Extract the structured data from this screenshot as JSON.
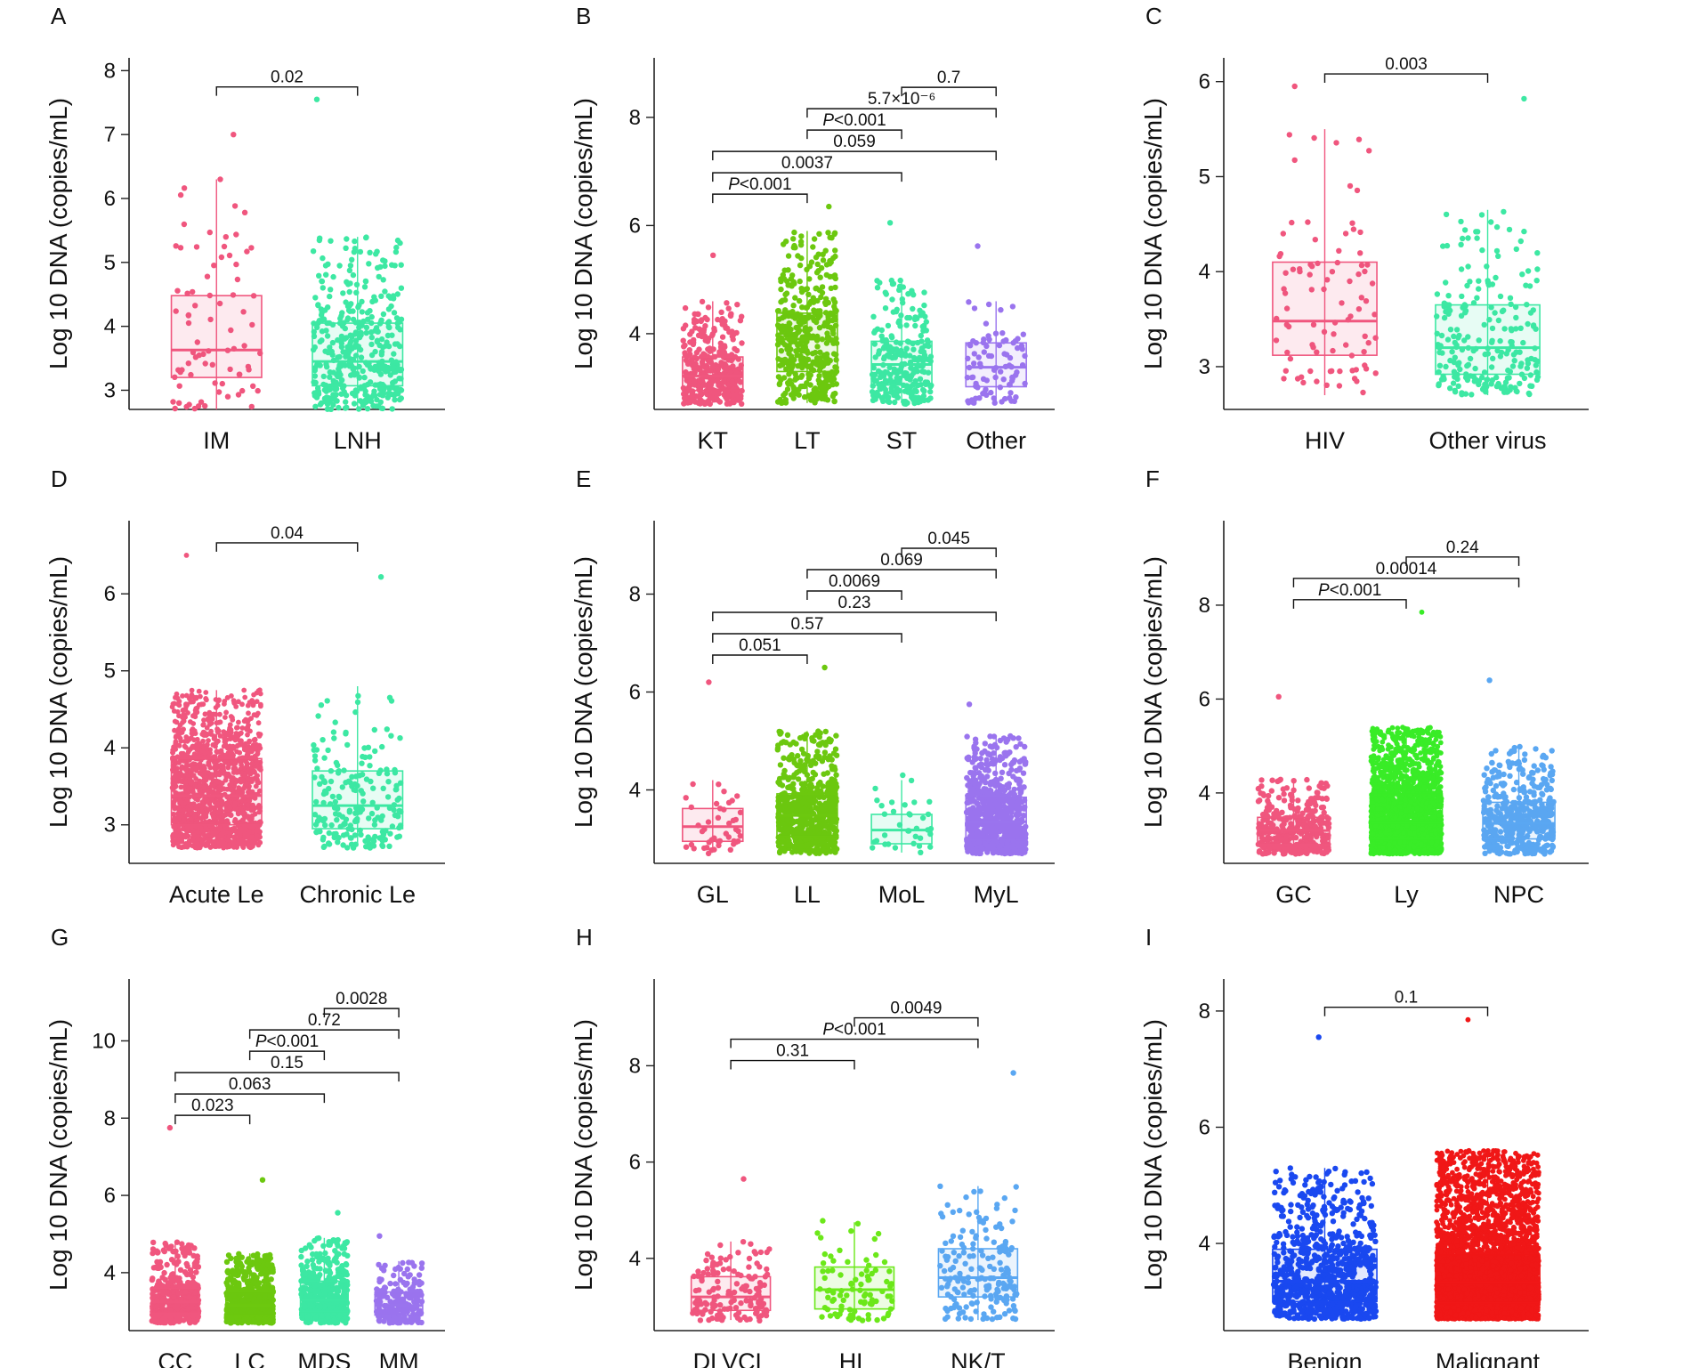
{
  "figure": {
    "y_axis_label": "Log 10 DNA (copies/mL)"
  },
  "chart_data": [
    {
      "type": "box",
      "panel": "A",
      "ylim": [
        2.7,
        8.2
      ],
      "yticks": [
        3,
        4,
        5,
        6,
        7,
        8
      ],
      "categories": [
        "IM",
        "LNH"
      ],
      "colors": [
        "#f0567e",
        "#3de8a3"
      ],
      "boxes": [
        {
          "q1": 3.2,
          "median": 3.63,
          "q3": 4.48,
          "lower": 2.7,
          "upper": 6.3,
          "n": 80,
          "max": 7.0
        },
        {
          "q1": 3.07,
          "median": 3.45,
          "q3": 4.05,
          "lower": 2.7,
          "upper": 5.4,
          "n": 420,
          "max": 7.55
        }
      ],
      "comparisons": [
        {
          "from": 0,
          "to": 1,
          "level": 0,
          "label": "0.02",
          "p": 0.02
        }
      ]
    },
    {
      "type": "box",
      "panel": "B",
      "ylim": [
        2.6,
        9.1
      ],
      "yticks": [
        4,
        6,
        8
      ],
      "categories": [
        "KT",
        "LT",
        "ST",
        "Other"
      ],
      "colors": [
        "#f0567e",
        "#6cc80f",
        "#3de8a3",
        "#9a74ee"
      ],
      "boxes": [
        {
          "q1": 2.95,
          "median": 3.22,
          "q3": 3.57,
          "lower": 2.72,
          "upper": 4.6,
          "n": 380,
          "max": 5.45
        },
        {
          "q1": 3.3,
          "median": 3.9,
          "q3": 4.38,
          "lower": 2.72,
          "upper": 5.9,
          "n": 420,
          "max": 6.35
        },
        {
          "q1": 3.05,
          "median": 3.43,
          "q3": 3.86,
          "lower": 2.72,
          "upper": 5.0,
          "n": 280,
          "max": 6.05
        },
        {
          "q1": 3.02,
          "median": 3.38,
          "q3": 3.83,
          "lower": 2.72,
          "upper": 4.6,
          "n": 90,
          "max": 5.62
        }
      ],
      "comparisons": [
        {
          "from": 0,
          "to": 1,
          "level": 0,
          "label": "<0.001",
          "p_prefix": "P"
        },
        {
          "from": 0,
          "to": 2,
          "level": 1,
          "label": "0.0037",
          "p": 0.0037
        },
        {
          "from": 0,
          "to": 3,
          "level": 2,
          "label": "0.059",
          "p": 0.059
        },
        {
          "from": 1,
          "to": 2,
          "level": 3,
          "label": "<0.001",
          "p_prefix": "P"
        },
        {
          "from": 1,
          "to": 3,
          "level": 4,
          "label": "5.7×10⁻⁶",
          "p": 5.7e-06
        },
        {
          "from": 2,
          "to": 3,
          "level": 5,
          "label": "0.7",
          "p": 0.7
        }
      ]
    },
    {
      "type": "box",
      "panel": "C",
      "ylim": [
        2.55,
        6.25
      ],
      "yticks": [
        3,
        4,
        5,
        6
      ],
      "categories": [
        "HIV",
        "Other virus"
      ],
      "colors": [
        "#f0567e",
        "#3de8a3"
      ],
      "boxes": [
        {
          "q1": 3.12,
          "median": 3.48,
          "q3": 4.1,
          "lower": 2.7,
          "upper": 5.5,
          "n": 90,
          "max": 5.95
        },
        {
          "q1": 2.92,
          "median": 3.2,
          "q3": 3.65,
          "lower": 2.7,
          "upper": 4.65,
          "n": 230,
          "max": 5.82
        }
      ],
      "comparisons": [
        {
          "from": 0,
          "to": 1,
          "level": 0,
          "label": "0.003",
          "p": 0.003
        }
      ]
    },
    {
      "type": "box",
      "panel": "D",
      "ylim": [
        2.5,
        6.95
      ],
      "yticks": [
        3,
        4,
        5,
        6
      ],
      "categories": [
        "Acute Le",
        "Chronic Le"
      ],
      "colors": [
        "#f0567e",
        "#3de8a3"
      ],
      "boxes": [
        {
          "q1": 3.0,
          "median": 3.38,
          "q3": 3.86,
          "lower": 2.72,
          "upper": 4.75,
          "n": 1500,
          "max": 6.5
        },
        {
          "q1": 2.95,
          "median": 3.25,
          "q3": 3.7,
          "lower": 2.72,
          "upper": 4.8,
          "n": 200,
          "max": 6.22
        }
      ],
      "comparisons": [
        {
          "from": 0,
          "to": 1,
          "level": 0,
          "label": "0.04",
          "p": 0.04
        }
      ]
    },
    {
      "type": "box",
      "panel": "E",
      "ylim": [
        2.5,
        9.5
      ],
      "yticks": [
        4,
        6,
        8
      ],
      "categories": [
        "GL",
        "LL",
        "MoL",
        "MyL"
      ],
      "colors": [
        "#f0567e",
        "#6cc80f",
        "#3de8a3",
        "#9a74ee"
      ],
      "boxes": [
        {
          "q1": 2.95,
          "median": 3.25,
          "q3": 3.62,
          "lower": 2.72,
          "upper": 4.2,
          "n": 45,
          "max": 6.2
        },
        {
          "q1": 3.05,
          "median": 3.48,
          "q3": 3.92,
          "lower": 2.72,
          "upper": 5.2,
          "n": 650,
          "max": 6.5
        },
        {
          "q1": 2.9,
          "median": 3.18,
          "q3": 3.5,
          "lower": 2.72,
          "upper": 4.2,
          "n": 35,
          "max": 4.3
        },
        {
          "q1": 2.98,
          "median": 3.35,
          "q3": 3.85,
          "lower": 2.72,
          "upper": 5.1,
          "n": 800,
          "max": 5.75
        }
      ],
      "comparisons": [
        {
          "from": 0,
          "to": 1,
          "level": 0,
          "label": "0.051",
          "p": 0.051
        },
        {
          "from": 0,
          "to": 2,
          "level": 1,
          "label": "0.57",
          "p": 0.57
        },
        {
          "from": 0,
          "to": 3,
          "level": 2,
          "label": "0.23",
          "p": 0.23
        },
        {
          "from": 1,
          "to": 2,
          "level": 3,
          "label": "0.0069",
          "p": 0.0069
        },
        {
          "from": 1,
          "to": 3,
          "level": 4,
          "label": "0.069",
          "p": 0.069
        },
        {
          "from": 2,
          "to": 3,
          "level": 5,
          "label": "0.045",
          "p": 0.045
        }
      ]
    },
    {
      "type": "box",
      "panel": "F",
      "ylim": [
        2.5,
        9.8
      ],
      "yticks": [
        4,
        6,
        8
      ],
      "categories": [
        "GC",
        "Ly",
        "NPC"
      ],
      "colors": [
        "#f0567e",
        "#39ec27",
        "#5aa7f2"
      ],
      "boxes": [
        {
          "q1": 2.9,
          "median": 3.2,
          "q3": 3.48,
          "lower": 2.72,
          "upper": 4.3,
          "n": 380,
          "max": 6.05
        },
        {
          "q1": 3.02,
          "median": 3.38,
          "q3": 3.98,
          "lower": 2.72,
          "upper": 5.4,
          "n": 2200,
          "max": 7.85
        },
        {
          "q1": 3.02,
          "median": 3.35,
          "q3": 3.8,
          "lower": 2.72,
          "upper": 5.0,
          "n": 450,
          "max": 6.4
        }
      ],
      "comparisons": [
        {
          "from": 0,
          "to": 1,
          "level": 0,
          "label": "<0.001",
          "p_prefix": "P"
        },
        {
          "from": 0,
          "to": 2,
          "level": 1,
          "label": "0.00014",
          "p": 0.00014
        },
        {
          "from": 1,
          "to": 2,
          "level": 2,
          "label": "0.24",
          "p": 0.24
        }
      ]
    },
    {
      "type": "box",
      "panel": "G",
      "ylim": [
        2.5,
        11.6
      ],
      "yticks": [
        4,
        6,
        8,
        10
      ],
      "categories": [
        "CC",
        "LC",
        "MDS",
        "MM"
      ],
      "colors": [
        "#f0567e",
        "#6cc80f",
        "#3de8a3",
        "#9a74ee"
      ],
      "boxes": [
        {
          "q1": 2.95,
          "median": 3.25,
          "q3": 3.6,
          "lower": 2.72,
          "upper": 4.8,
          "n": 480,
          "max": 7.75
        },
        {
          "q1": 2.9,
          "median": 3.15,
          "q3": 3.5,
          "lower": 2.72,
          "upper": 4.5,
          "n": 650,
          "max": 6.4
        },
        {
          "q1": 3.0,
          "median": 3.3,
          "q3": 3.78,
          "lower": 2.72,
          "upper": 4.9,
          "n": 500,
          "max": 5.55
        },
        {
          "q1": 2.9,
          "median": 3.15,
          "q3": 3.5,
          "lower": 2.72,
          "upper": 4.3,
          "n": 220,
          "max": 4.95
        }
      ],
      "comparisons": [
        {
          "from": 0,
          "to": 1,
          "level": 0,
          "label": "0.023",
          "p": 0.023
        },
        {
          "from": 0,
          "to": 2,
          "level": 1,
          "label": "0.063",
          "p": 0.063
        },
        {
          "from": 0,
          "to": 3,
          "level": 2,
          "label": "0.15",
          "p": 0.15
        },
        {
          "from": 1,
          "to": 2,
          "level": 3,
          "label": "<0.001",
          "p_prefix": "P"
        },
        {
          "from": 1,
          "to": 3,
          "level": 4,
          "label": "0.72",
          "p": 0.72
        },
        {
          "from": 2,
          "to": 3,
          "level": 5,
          "label": "0.0028",
          "p": 0.0028
        }
      ]
    },
    {
      "type": "box",
      "panel": "H",
      "ylim": [
        2.5,
        9.8
      ],
      "yticks": [
        4,
        6,
        8
      ],
      "categories": [
        "DLVCL",
        "HL",
        "NK/T"
      ],
      "colors": [
        "#f0567e",
        "#6ce81a",
        "#5aa7f2"
      ],
      "boxes": [
        {
          "q1": 2.92,
          "median": 3.2,
          "q3": 3.62,
          "lower": 2.72,
          "upper": 4.35,
          "n": 150,
          "max": 5.65
        },
        {
          "q1": 2.95,
          "median": 3.35,
          "q3": 3.82,
          "lower": 2.72,
          "upper": 4.75,
          "n": 90,
          "max": 4.78
        },
        {
          "q1": 3.2,
          "median": 3.6,
          "q3": 4.2,
          "lower": 2.72,
          "upper": 5.5,
          "n": 190,
          "max": 7.85
        }
      ],
      "comparisons": [
        {
          "from": 0,
          "to": 1,
          "level": 0,
          "label": "0.31",
          "p": 0.31
        },
        {
          "from": 0,
          "to": 2,
          "level": 1,
          "label": "<0.001",
          "p_prefix": "P"
        },
        {
          "from": 1,
          "to": 2,
          "level": 2,
          "label": "0.0049",
          "p": 0.0049
        }
      ]
    },
    {
      "type": "box",
      "panel": "I",
      "ylim": [
        2.5,
        8.55
      ],
      "yticks": [
        4,
        6,
        8
      ],
      "categories": [
        "Benign",
        "Malignant"
      ],
      "colors": [
        "#1a48f0",
        "#f01717"
      ],
      "boxes": [
        {
          "q1": 3.0,
          "median": 3.35,
          "q3": 3.9,
          "lower": 2.72,
          "upper": 5.3,
          "n": 900,
          "max": 7.55
        },
        {
          "q1": 2.98,
          "median": 3.33,
          "q3": 3.8,
          "lower": 2.72,
          "upper": 5.6,
          "n": 4500,
          "max": 7.85
        }
      ],
      "comparisons": [
        {
          "from": 0,
          "to": 1,
          "level": 0,
          "label": "0.1",
          "p": 0.1
        }
      ]
    }
  ]
}
